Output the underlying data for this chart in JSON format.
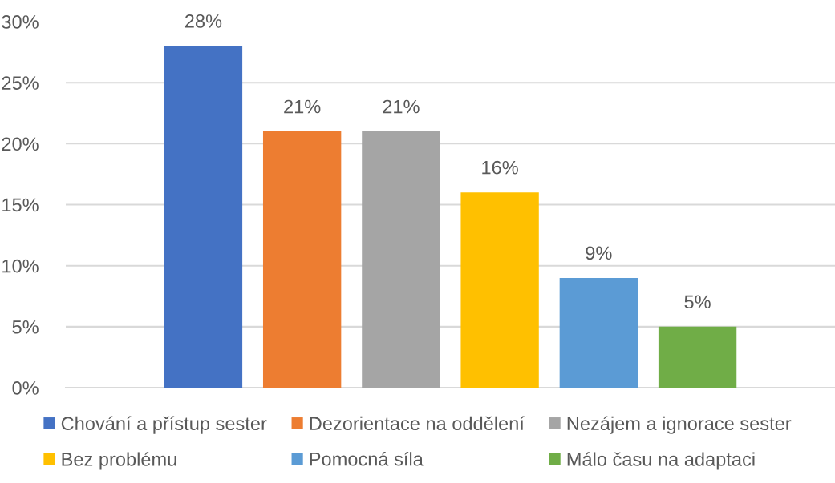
{
  "chart_data": {
    "type": "bar",
    "categories": [
      null
    ],
    "series": [
      {
        "name": "Chování a přístup sester",
        "color": "#4472c4",
        "values": [
          28
        ],
        "value_labels": [
          "28%"
        ]
      },
      {
        "name": "Dezorientace na oddělení",
        "color": "#ed7d31",
        "values": [
          21
        ],
        "value_labels": [
          "21%"
        ]
      },
      {
        "name": "Nezájem a ignorace sester",
        "color": "#a5a5a5",
        "values": [
          21
        ],
        "value_labels": [
          "21%"
        ]
      },
      {
        "name": "Bez problému",
        "color": "#ffc000",
        "values": [
          16
        ],
        "value_labels": [
          "16%"
        ]
      },
      {
        "name": "Pomocná síla",
        "color": "#5b9bd5",
        "values": [
          9
        ],
        "value_labels": [
          "9%"
        ]
      },
      {
        "name": "Málo času na adaptaci",
        "color": "#70ad47",
        "values": [
          5
        ],
        "value_labels": [
          "5%"
        ]
      }
    ],
    "ylim": [
      0,
      30
    ],
    "yticks": [
      {
        "value": 0,
        "label": "0%"
      },
      {
        "value": 5,
        "label": "5%"
      },
      {
        "value": 10,
        "label": "10%"
      },
      {
        "value": 15,
        "label": "15%"
      },
      {
        "value": 20,
        "label": "20%"
      },
      {
        "value": 25,
        "label": "25%"
      },
      {
        "value": 30,
        "label": "30%"
      }
    ],
    "grid": "y",
    "legend": "bottom",
    "tick_labels": "y"
  }
}
